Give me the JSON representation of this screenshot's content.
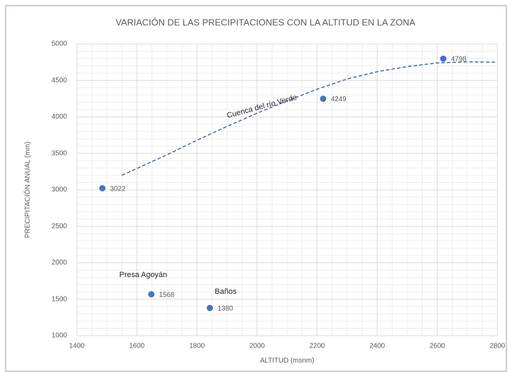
{
  "chart_data": {
    "type": "scatter",
    "title": "VARIACIÓN DE LAS PRECIPITACIONES CON LA ALTITUD EN LA ZONA",
    "xlabel": "ALTITUD (msnm)",
    "ylabel": "PRECIPITACIÓN ANUAL (mm)",
    "series": [
      {
        "name": null,
        "color": "#4472c4",
        "x": [
          1485,
          1648,
          1843,
          2220,
          2620
        ],
        "values": [
          3022,
          1568,
          1380,
          4249,
          4798
        ]
      }
    ],
    "trend": {
      "color": "#2f5597",
      "x": [
        1550,
        1700,
        1800,
        1900,
        2000,
        2100,
        2200,
        2300,
        2400,
        2500,
        2600,
        2700,
        2800
      ],
      "values": [
        3200,
        3480,
        3680,
        3870,
        4050,
        4220,
        4380,
        4520,
        4620,
        4690,
        4740,
        4755,
        4750
      ]
    },
    "annotations": [
      "Cuenca del río Verde",
      "Presa Agoyán",
      "Baños"
    ],
    "xlim": [
      1400,
      2800
    ],
    "xticks": [
      1400,
      1600,
      1800,
      2000,
      2200,
      2400,
      2600,
      2800
    ],
    "ylim": [
      1000,
      5000
    ],
    "yticks": [
      1000,
      1500,
      2000,
      2500,
      3000,
      3500,
      4000,
      4500,
      5000
    ],
    "grid": true
  }
}
